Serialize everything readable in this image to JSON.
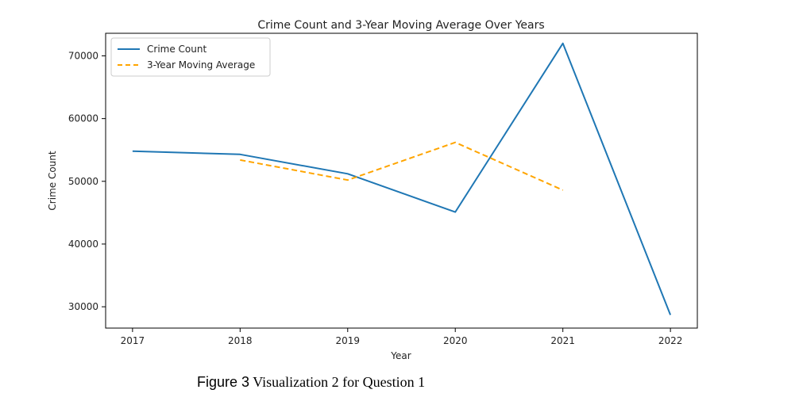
{
  "chart_data": {
    "type": "line",
    "title": "Crime Count and 3-Year Moving Average Over Years",
    "xlabel": "Year",
    "ylabel": "Crime Count",
    "x": [
      2017,
      2018,
      2019,
      2020,
      2021,
      2022
    ],
    "xlim": [
      2016.75,
      2022.25
    ],
    "ylim": [
      26600,
      73600
    ],
    "yticks": [
      30000,
      40000,
      50000,
      60000,
      70000
    ],
    "series": [
      {
        "name": "Crime Count",
        "color": "#1f77b4",
        "style": "solid",
        "values": [
          54800,
          54300,
          51200,
          45100,
          72000,
          28700
        ]
      },
      {
        "name": "3-Year Moving Average",
        "color": "#ffa500",
        "style": "dashed",
        "values": [
          null,
          53400,
          50200,
          56200,
          48600,
          null
        ]
      }
    ],
    "grid": false,
    "legend": "upper left"
  },
  "caption": {
    "label": "Figure 3",
    "text": " Visualization 2 for Question 1"
  }
}
